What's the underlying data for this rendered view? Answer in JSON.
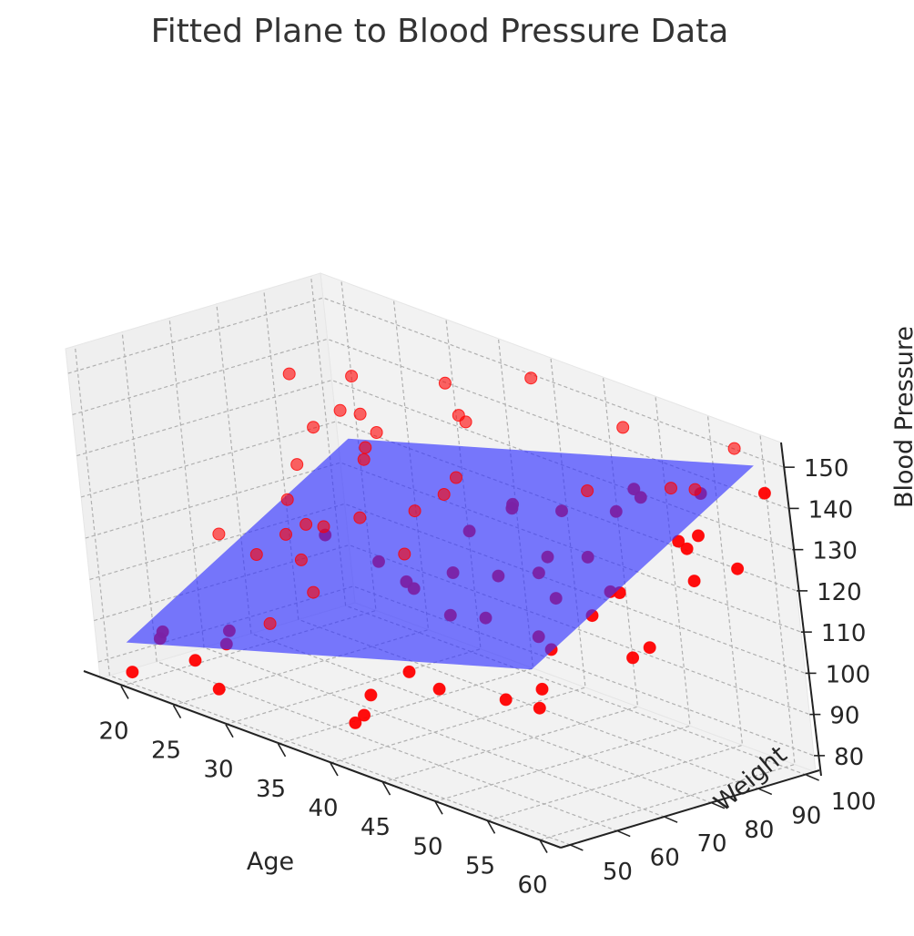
{
  "chart_data": {
    "type": "scatter3d",
    "title": "Fitted Plane to Blood Pressure Data",
    "xlabel": "Age",
    "ylabel": "Weight",
    "zlabel": "Blood Pressure",
    "xlim": [
      18,
      62
    ],
    "ylim": [
      48,
      102
    ],
    "zlim": [
      76,
      156
    ],
    "x_ticks": [
      "20",
      "25",
      "30",
      "35",
      "40",
      "45",
      "50",
      "55",
      "60"
    ],
    "y_ticks": [
      "50",
      "60",
      "70",
      "80",
      "90",
      "100"
    ],
    "z_ticks": [
      "80",
      "90",
      "100",
      "110",
      "120",
      "130",
      "140",
      "150"
    ],
    "grid": true,
    "colors": {
      "points": "#ff0000",
      "plane": "#3333ff",
      "pane": "#f2f2f2",
      "grid": "#b0b0b0",
      "axis": "#222222"
    },
    "plane": {
      "intercept": 38,
      "age_coef": 0.77,
      "weight_coef": 0.65
    },
    "points": [
      [
        19.6,
        90.1,
        137.1
      ],
      [
        20.3,
        50.0,
        79.0
      ],
      [
        20.7,
        55.6,
        85.6
      ],
      [
        21.0,
        69.3,
        106.6
      ],
      [
        21.6,
        85.6,
        118.5
      ],
      [
        21.8,
        54.0,
        88.8
      ],
      [
        23.5,
        91.7,
        131.3
      ],
      [
        23.9,
        85.0,
        129.9
      ],
      [
        24.6,
        92.5,
        140.4
      ],
      [
        25.5,
        67.3,
        106.5
      ],
      [
        25.6,
        91.4,
        132.5
      ],
      [
        25.7,
        74.4,
        117.6
      ],
      [
        25.8,
        81.2,
        106.8
      ],
      [
        25.9,
        51.6,
        86.5
      ],
      [
        26.2,
        58.6,
        91.6
      ],
      [
        26.8,
        88.7,
        123.5
      ],
      [
        27.0,
        53.6,
        79.9
      ],
      [
        27.0,
        75.0,
        112.6
      ],
      [
        28.1,
        89.2,
        131.1
      ],
      [
        28.3,
        53.4,
        92.1
      ],
      [
        29.1,
        84.5,
        130.0
      ],
      [
        29.1,
        66.3,
        115.1
      ],
      [
        29.4,
        68.3,
        108.5
      ],
      [
        29.6,
        73.2,
        115.1
      ],
      [
        30.4,
        99.6,
        141.7
      ],
      [
        31.7,
        76.5,
        118.1
      ],
      [
        32.2,
        64.3,
        104.6
      ],
      [
        32.4,
        54.3,
        100.6
      ],
      [
        33.5,
        75.7,
        109.4
      ],
      [
        34.5,
        93.2,
        139.9
      ],
      [
        34.9,
        93.7,
        138.5
      ],
      [
        35.1,
        90.1,
        126.4
      ],
      [
        35.9,
        85.6,
        124.6
      ],
      [
        36.3,
        78.4,
        123.4
      ],
      [
        37.2,
        73.3,
        108.8
      ],
      [
        37.3,
        73.3,
        115.6
      ],
      [
        37.8,
        86.1,
        117.3
      ],
      [
        38.1,
        57.9,
        80.6
      ],
      [
        39.8,
        97.9,
        152.3
      ],
      [
        40.1,
        68.7,
        111.4
      ],
      [
        40.8,
        54.3,
        86.2
      ],
      [
        41.0,
        55.7,
        90.8
      ],
      [
        41.2,
        74.8,
        114.2
      ],
      [
        41.3,
        88.1,
        125.4
      ],
      [
        41.6,
        87.7,
        126.8
      ],
      [
        43.3,
        79.7,
        113.7
      ],
      [
        43.3,
        76.2,
        104.7
      ],
      [
        43.6,
        68.4,
        108.3
      ],
      [
        45.0,
        90.6,
        127.4
      ],
      [
        46.5,
        52.7,
        102.6
      ],
      [
        46.9,
        57.7,
        97.1
      ],
      [
        47.0,
        83.4,
        110.5
      ],
      [
        47.7,
        99.4,
        147.2
      ],
      [
        47.9,
        90.3,
        135.1
      ],
      [
        48.1,
        80.3,
        122.6
      ],
      [
        49.1,
        76.1,
        121.1
      ],
      [
        49.1,
        86.5,
        121.4
      ],
      [
        49.4,
        96.8,
        134.7
      ],
      [
        50.6,
        90.2,
        132.6
      ],
      [
        50.7,
        73.7,
        104.8
      ],
      [
        51.1,
        82.0,
        110.6
      ],
      [
        51.2,
        94.3,
        135.2
      ],
      [
        51.6,
        69.1,
        97.6
      ],
      [
        51.8,
        61.0,
        98.0
      ],
      [
        53.4,
        81.5,
        118.7
      ],
      [
        54.1,
        63.0,
        97.4
      ],
      [
        54.6,
        63.3,
        115.1
      ],
      [
        55.8,
        91.2,
        142.8
      ],
      [
        57.1,
        88.9,
        131.9
      ],
      [
        57.1,
        94.5,
        141.6
      ],
      [
        57.2,
        90.3,
        129.7
      ],
      [
        57.6,
        74.7,
        124.7
      ],
      [
        58.3,
        99.9,
        151.8
      ],
      [
        58.5,
        90.2,
        134.1
      ],
      [
        58.9,
        73.3,
        110.6
      ],
      [
        59.0,
        76.8,
        112.0
      ],
      [
        59.1,
        89.3,
        146.2
      ],
      [
        60.0,
        85.3,
        126.2
      ],
      [
        60.7,
        93.0,
        127.2
      ],
      [
        60.9,
        99.8,
        143.4
      ]
    ]
  }
}
